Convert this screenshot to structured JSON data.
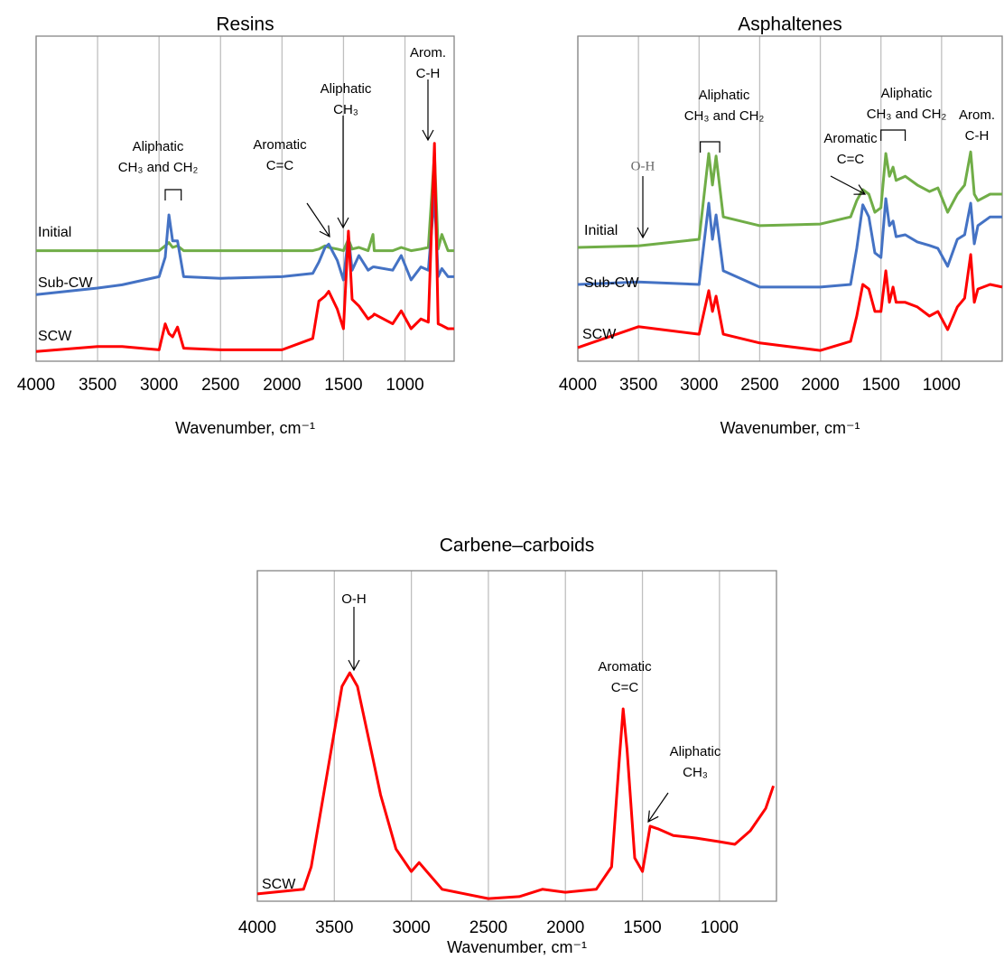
{
  "chart_data": [
    {
      "type": "line",
      "title": "Resins",
      "x_label": "Wavenumber, cm⁻¹",
      "x": [
        4000,
        3500,
        3300,
        3000,
        2950,
        2920,
        2890,
        2850,
        2800,
        2500,
        2000,
        1750,
        1700,
        1650,
        1620,
        1550,
        1500,
        1460,
        1430,
        1375,
        1300,
        1260,
        1250,
        1100,
        1030,
        950,
        870,
        810,
        760,
        730,
        700,
        650,
        600
      ],
      "xlim": [
        4000,
        600
      ],
      "xticks": [
        4000,
        3500,
        3000,
        2500,
        2000,
        1500,
        1000
      ],
      "ylim": [
        0,
        100
      ],
      "grid": true,
      "series": [
        {
          "name": "Initial",
          "color": "#70ad47",
          "values": [
            34,
            34,
            34,
            34,
            35.5,
            36.5,
            35,
            35.5,
            34,
            34,
            34,
            34,
            34.5,
            35.5,
            35,
            34.5,
            34,
            37.5,
            34.5,
            35,
            34,
            39,
            34,
            34,
            35,
            34,
            34.5,
            35,
            64,
            34.5,
            39,
            34,
            34
          ]
        },
        {
          "name": "Sub-CW",
          "color": "#4472c4",
          "values": [
            20.5,
            22.5,
            23.5,
            26,
            32,
            45,
            37,
            37,
            26,
            25.5,
            26,
            27,
            30.5,
            35,
            36,
            31,
            25,
            38.5,
            28,
            32.5,
            28,
            29,
            29,
            28,
            32.5,
            25,
            29,
            28,
            51,
            26,
            28.5,
            26,
            26
          ]
        },
        {
          "name": "SCW",
          "color": "#ff0000",
          "values": [
            3,
            4.5,
            4.5,
            3.5,
            11.5,
            8.5,
            7.5,
            10.5,
            4,
            3.5,
            3.5,
            7,
            18.5,
            20,
            21.5,
            16,
            10,
            40,
            19,
            17,
            13,
            14,
            14.5,
            11.5,
            15.5,
            10,
            13,
            12,
            67,
            11.5,
            11,
            10,
            10
          ]
        }
      ],
      "annotations": [
        {
          "text": [
            "Aliphatic",
            "CH₃ and CH₂"
          ]
        },
        {
          "text": [
            "Aromatic",
            "C=C"
          ]
        },
        {
          "text": [
            "Aliphatic",
            "CH₃"
          ]
        },
        {
          "text": [
            "Arom.",
            "C-H"
          ]
        }
      ]
    },
    {
      "type": "line",
      "title": "Asphaltenes",
      "x_label": "Wavenumber, cm⁻¹",
      "x": [
        4000,
        3500,
        3000,
        2920,
        2890,
        2860,
        2800,
        2500,
        2000,
        1750,
        1700,
        1650,
        1600,
        1550,
        1500,
        1460,
        1430,
        1400,
        1375,
        1300,
        1200,
        1100,
        1030,
        950,
        870,
        810,
        760,
        730,
        700,
        600,
        500
      ],
      "xlim": [
        4000,
        500
      ],
      "xticks": [
        4000,
        3500,
        3000,
        2500,
        2000,
        1500,
        1000
      ],
      "ylim": [
        0,
        100
      ],
      "grid": true,
      "series": [
        {
          "name": "Initial",
          "color": "#70ad47",
          "values": [
            35,
            35.5,
            37.5,
            63.9,
            54.2,
            63.1,
            44.4,
            41.7,
            42.2,
            44.4,
            49.4,
            52.8,
            51.4,
            45.8,
            47.2,
            63.9,
            56.9,
            59.7,
            55.6,
            56.9,
            54.2,
            52.2,
            53.3,
            45.8,
            51.4,
            54.2,
            64.4,
            51.4,
            49.4,
            51.4,
            51.4
          ]
        },
        {
          "name": "Sub-CW",
          "color": "#4472c4",
          "values": [
            23.6,
            24.4,
            23.6,
            48.6,
            37.5,
            45,
            27.8,
            22.8,
            22.8,
            23.6,
            34.7,
            48.1,
            44.4,
            33.3,
            31.9,
            50,
            41.7,
            43.1,
            38.3,
            38.9,
            36.7,
            35.6,
            34.7,
            29.2,
            37.5,
            38.9,
            48.6,
            36.1,
            41.7,
            44.4,
            44.4
          ]
        },
        {
          "name": "SCW",
          "color": "#ff0000",
          "values": [
            4.2,
            10.6,
            8.3,
            21.7,
            15.3,
            20,
            8.3,
            5.6,
            3.3,
            6.1,
            13.9,
            23.6,
            22.2,
            15.3,
            15.3,
            27.8,
            18.1,
            22.8,
            18.1,
            18.1,
            16.7,
            13.9,
            15.3,
            9.7,
            16.7,
            19.4,
            32.8,
            18.1,
            22.2,
            23.6,
            22.8
          ]
        }
      ],
      "annotations": [
        {
          "text": [
            "O-H"
          ]
        },
        {
          "text": [
            "Aliphatic",
            "CH₃ and CH₂"
          ]
        },
        {
          "text": [
            "Aromatic",
            "C=C"
          ]
        },
        {
          "text": [
            "Aliphatic",
            "CH₃ and CH₂"
          ]
        },
        {
          "text": [
            "Arom.",
            "C-H"
          ]
        }
      ]
    },
    {
      "type": "line",
      "title": "Carbene–carboids",
      "x_label": "Wavenumber, cm⁻¹",
      "x": [
        4000,
        3700,
        3650,
        3550,
        3450,
        3400,
        3350,
        3250,
        3200,
        3100,
        3000,
        2950,
        2900,
        2800,
        2500,
        2300,
        2150,
        2000,
        1800,
        1700,
        1650,
        1625,
        1600,
        1550,
        1500,
        1450,
        1400,
        1300,
        1150,
        1000,
        900,
        800,
        700,
        650
      ],
      "xlim": [
        4000,
        630
      ],
      "xticks": [
        4000,
        3500,
        3000,
        2500,
        2000,
        1500,
        1000
      ],
      "ylim": [
        0,
        100
      ],
      "grid": true,
      "series": [
        {
          "name": "SCW",
          "color": "#ff0000",
          "values": [
            2.2,
            3.6,
            10.4,
            37.7,
            65,
            69.1,
            65,
            43.2,
            32.2,
            15.8,
            9.0,
            11.7,
            9.0,
            3.6,
            0.8,
            1.4,
            3.6,
            2.7,
            3.6,
            10.4,
            43.2,
            58.2,
            45.9,
            13.1,
            9.0,
            22.7,
            21.9,
            19.9,
            19.1,
            18.0,
            17.2,
            21.3,
            28.1,
            34.9
          ]
        }
      ],
      "annotations": [
        {
          "text": [
            "O-H"
          ]
        },
        {
          "text": [
            "Aromatic",
            "C=C"
          ]
        },
        {
          "text": [
            "Aliphatic",
            "CH₃"
          ]
        }
      ]
    }
  ]
}
